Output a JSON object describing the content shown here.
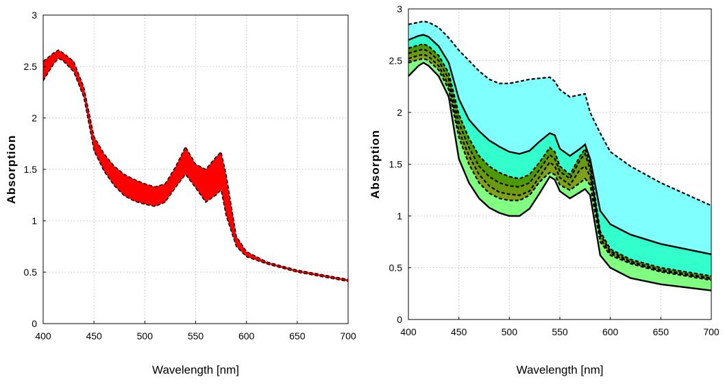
{
  "chart_data": [
    {
      "type": "area",
      "xlabel": "Wavelength [nm]",
      "ylabel": "Absorption",
      "xlim": [
        400,
        700
      ],
      "ylim": [
        0,
        3
      ],
      "xticks": [
        "400",
        "450",
        "500",
        "550",
        "600",
        "650",
        "700"
      ],
      "yticks": [
        "0",
        "0.5",
        "1",
        "1.5",
        "2",
        "2.5",
        "3"
      ],
      "grid": true,
      "bands": [
        {
          "fill": "#ff0000",
          "x": [
            400,
            410,
            415,
            420,
            430,
            440,
            450,
            460,
            470,
            480,
            490,
            500,
            510,
            520,
            530,
            540,
            550,
            560,
            570,
            575,
            580,
            590,
            600,
            620,
            650,
            700
          ],
          "upper": [
            2.55,
            2.63,
            2.66,
            2.63,
            2.55,
            2.3,
            1.82,
            1.65,
            1.53,
            1.45,
            1.4,
            1.36,
            1.33,
            1.36,
            1.52,
            1.72,
            1.55,
            1.5,
            1.62,
            1.67,
            1.45,
            0.85,
            0.7,
            0.6,
            0.52,
            0.43
          ],
          "lower": [
            2.36,
            2.52,
            2.58,
            2.55,
            2.45,
            2.2,
            1.68,
            1.48,
            1.34,
            1.24,
            1.19,
            1.16,
            1.14,
            1.18,
            1.32,
            1.45,
            1.32,
            1.18,
            1.25,
            1.3,
            1.05,
            0.75,
            0.65,
            0.58,
            0.5,
            0.41
          ]
        }
      ]
    },
    {
      "type": "area",
      "xlabel": "Wavelength [nm]",
      "ylabel": "Absorption",
      "xlim": [
        400,
        700
      ],
      "ylim": [
        0,
        3
      ],
      "xticks": [
        "400",
        "450",
        "500",
        "550",
        "600",
        "650",
        "700"
      ],
      "yticks": [
        "0",
        "0.5",
        "1",
        "1.5",
        "2",
        "2.5",
        "3"
      ],
      "grid": true,
      "x": [
        400,
        410,
        415,
        420,
        430,
        440,
        450,
        460,
        470,
        480,
        490,
        500,
        510,
        520,
        530,
        540,
        545,
        550,
        560,
        570,
        575,
        580,
        590,
        600,
        620,
        650,
        700
      ],
      "curves": [
        {
          "style": "dashed",
          "values": [
            2.85,
            2.87,
            2.88,
            2.87,
            2.82,
            2.72,
            2.6,
            2.5,
            2.4,
            2.32,
            2.28,
            2.28,
            2.3,
            2.32,
            2.33,
            2.34,
            2.3,
            2.22,
            2.15,
            2.17,
            2.18,
            2.0,
            1.8,
            1.62,
            1.48,
            1.32,
            1.1
          ]
        },
        {
          "style": "solid",
          "values": [
            2.7,
            2.74,
            2.75,
            2.73,
            2.64,
            2.48,
            2.13,
            1.93,
            1.82,
            1.73,
            1.67,
            1.62,
            1.6,
            1.63,
            1.72,
            1.8,
            1.78,
            1.65,
            1.58,
            1.65,
            1.69,
            1.55,
            1.05,
            0.92,
            0.82,
            0.73,
            0.63
          ]
        },
        {
          "style": "dashed",
          "values": [
            2.62,
            2.65,
            2.66,
            2.64,
            2.55,
            2.38,
            1.98,
            1.75,
            1.58,
            1.48,
            1.42,
            1.38,
            1.36,
            1.4,
            1.52,
            1.66,
            1.62,
            1.48,
            1.4,
            1.58,
            1.65,
            1.5,
            0.85,
            0.68,
            0.58,
            0.5,
            0.42
          ]
        },
        {
          "style": "dashed",
          "values": [
            2.57,
            2.6,
            2.61,
            2.59,
            2.5,
            2.32,
            1.9,
            1.66,
            1.48,
            1.38,
            1.32,
            1.29,
            1.28,
            1.32,
            1.45,
            1.59,
            1.55,
            1.43,
            1.36,
            1.54,
            1.6,
            1.45,
            0.82,
            0.66,
            0.56,
            0.48,
            0.4
          ]
        },
        {
          "style": "dashed",
          "values": [
            2.52,
            2.55,
            2.56,
            2.54,
            2.45,
            2.26,
            1.82,
            1.58,
            1.4,
            1.29,
            1.23,
            1.21,
            1.2,
            1.24,
            1.38,
            1.52,
            1.48,
            1.37,
            1.3,
            1.45,
            1.48,
            1.38,
            0.78,
            0.64,
            0.55,
            0.47,
            0.39
          ]
        },
        {
          "style": "dashed",
          "values": [
            2.48,
            2.51,
            2.52,
            2.5,
            2.41,
            2.22,
            1.76,
            1.5,
            1.32,
            1.22,
            1.17,
            1.15,
            1.15,
            1.2,
            1.33,
            1.42,
            1.4,
            1.3,
            1.25,
            1.32,
            1.36,
            1.3,
            0.75,
            0.62,
            0.54,
            0.46,
            0.38
          ]
        },
        {
          "style": "solid",
          "values": [
            2.35,
            2.45,
            2.48,
            2.45,
            2.35,
            2.15,
            1.55,
            1.32,
            1.17,
            1.08,
            1.03,
            1.0,
            1.0,
            1.07,
            1.22,
            1.38,
            1.35,
            1.24,
            1.17,
            1.23,
            1.26,
            1.2,
            0.62,
            0.5,
            0.4,
            0.34,
            0.28
          ]
        }
      ],
      "fills": [
        "#80ffff",
        "#33ffcc",
        "#4d9900",
        "#6a9a10",
        "#7fa01a",
        "#80ff80"
      ]
    }
  ]
}
